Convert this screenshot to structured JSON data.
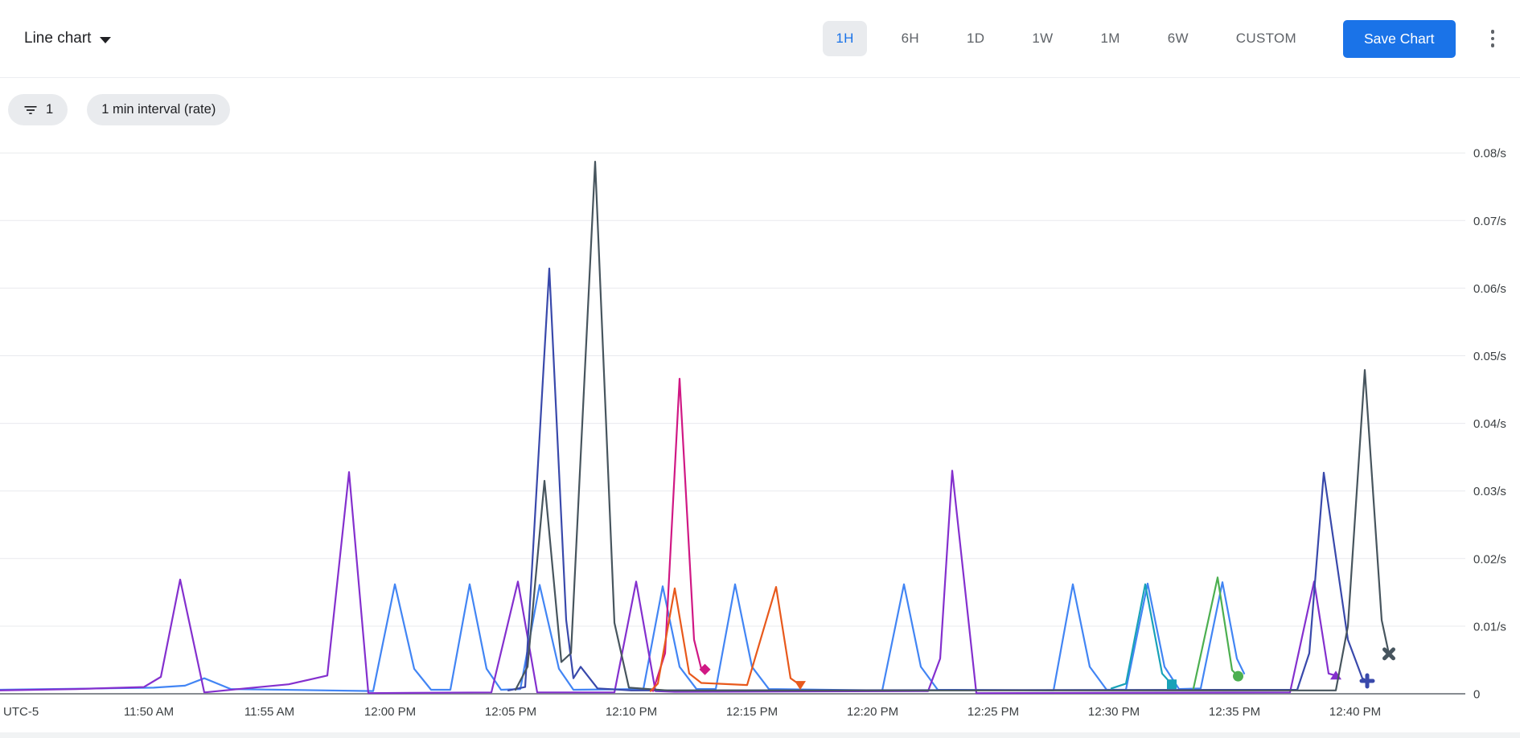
{
  "header": {
    "chart_type_label": "Line chart",
    "time_ranges": [
      "1H",
      "6H",
      "1D",
      "1W",
      "1M",
      "6W",
      "CUSTOM"
    ],
    "selected_range": "1H",
    "save_button": "Save Chart"
  },
  "filters": {
    "filter_count": "1",
    "interval_chip": "1 min interval (rate)"
  },
  "colors": {
    "accent_blue": "#1a73e8",
    "selected_pill_bg": "#e9ebee",
    "chip_bg": "#e9ebee",
    "gridline": "#e9eaee",
    "axis_line": "#878c91",
    "tick_text": "#3c4043"
  },
  "chart_data": {
    "type": "line",
    "title": "",
    "y_axis": {
      "unit": "/s",
      "ylim": [
        0,
        0.08
      ],
      "ticks": [
        {
          "v": 0.08,
          "label": "0.08/s"
        },
        {
          "v": 0.07,
          "label": "0.07/s"
        },
        {
          "v": 0.06,
          "label": "0.06/s"
        },
        {
          "v": 0.05,
          "label": "0.05/s"
        },
        {
          "v": 0.04,
          "label": "0.04/s"
        },
        {
          "v": 0.03,
          "label": "0.03/s"
        },
        {
          "v": 0.02,
          "label": "0.02/s"
        },
        {
          "v": 0.01,
          "label": "0.01/s"
        },
        {
          "v": 0,
          "label": "0"
        }
      ]
    },
    "x_axis": {
      "timezone_label": "UTC-5",
      "t_unit": "minutes after 11:45 AM",
      "ticks": [
        {
          "t": 5,
          "label": "11:50 AM"
        },
        {
          "t": 10,
          "label": "11:55 AM"
        },
        {
          "t": 15,
          "label": "12:00 PM"
        },
        {
          "t": 20,
          "label": "12:05 PM"
        },
        {
          "t": 25,
          "label": "12:10 PM"
        },
        {
          "t": 30,
          "label": "12:15 PM"
        },
        {
          "t": 35,
          "label": "12:20 PM"
        },
        {
          "t": 40,
          "label": "12:25 PM"
        },
        {
          "t": 45,
          "label": "12:30 PM"
        },
        {
          "t": 50,
          "label": "12:35 PM"
        },
        {
          "t": 55,
          "label": "12:40 PM"
        }
      ]
    },
    "series": [
      {
        "name": "blue",
        "color": "#4285f4",
        "marker": null,
        "points": [
          [
            -1.2,
            0.0006
          ],
          [
            3,
            0.0008
          ],
          [
            5.2,
            0.0009
          ],
          [
            6.5,
            0.0012
          ],
          [
            7.3,
            0.0023
          ],
          [
            8.4,
            0.0007
          ],
          [
            14.3,
            0.0004
          ],
          [
            15.2,
            0.0162
          ],
          [
            16,
            0.0037
          ],
          [
            16.7,
            0.0006
          ],
          [
            17.5,
            0.0006
          ],
          [
            18.3,
            0.0162
          ],
          [
            19,
            0.0037
          ],
          [
            19.6,
            0.0006
          ],
          [
            20.4,
            0.0007
          ],
          [
            21.2,
            0.0161
          ],
          [
            22,
            0.0037
          ],
          [
            22.6,
            0.0006
          ],
          [
            25.5,
            0.0007
          ],
          [
            26.3,
            0.0159
          ],
          [
            27,
            0.004
          ],
          [
            27.7,
            0.0007
          ],
          [
            28.5,
            0.0007
          ],
          [
            29.3,
            0.0162
          ],
          [
            30,
            0.004
          ],
          [
            30.7,
            0.0007
          ],
          [
            35.4,
            0.0005
          ],
          [
            36.3,
            0.0162
          ],
          [
            37,
            0.004
          ],
          [
            37.7,
            0.0006
          ],
          [
            42.5,
            0.0005
          ],
          [
            43.3,
            0.0162
          ],
          [
            44,
            0.004
          ],
          [
            44.7,
            0.0006
          ],
          [
            45.5,
            0.0006
          ],
          [
            46.4,
            0.0163
          ],
          [
            47.1,
            0.004
          ],
          [
            47.7,
            0.0007
          ],
          [
            48.6,
            0.0008
          ],
          [
            49.5,
            0.0165
          ],
          [
            50.1,
            0.0052
          ],
          [
            50.4,
            0.003
          ]
        ]
      },
      {
        "name": "purple",
        "color": "#8430ce",
        "marker": "triangle-up",
        "points": [
          [
            -1.2,
            0.0005
          ],
          [
            2,
            0.0007
          ],
          [
            4.8,
            0.001
          ],
          [
            5.5,
            0.0025
          ],
          [
            6.3,
            0.0169
          ],
          [
            7.3,
            0.0002
          ],
          [
            9,
            0.0008
          ],
          [
            10.8,
            0.0014
          ],
          [
            12.4,
            0.0027
          ],
          [
            13.3,
            0.0328
          ],
          [
            14.1,
            0.0001
          ],
          [
            19.2,
            0.0002
          ],
          [
            20.3,
            0.0166
          ],
          [
            21.1,
            0.0002
          ],
          [
            24.3,
            0.0002
          ],
          [
            25.2,
            0.0166
          ],
          [
            26,
            0.0004
          ],
          [
            26.8,
            0.0003
          ],
          [
            37.3,
            0.0004
          ],
          [
            37.8,
            0.0052
          ],
          [
            38.3,
            0.033
          ],
          [
            39.3,
            0.0001
          ],
          [
            52.3,
            0.0002
          ],
          [
            53.3,
            0.0166
          ],
          [
            53.9,
            0.003
          ],
          [
            54.2,
            0.0027
          ]
        ]
      },
      {
        "name": "indigo",
        "color": "#3949ab",
        "marker": "plus",
        "points": [
          [
            19.9,
            0.0005
          ],
          [
            20.6,
            0.001
          ],
          [
            21.6,
            0.0629
          ],
          [
            22.3,
            0.0109
          ],
          [
            22.6,
            0.0023
          ],
          [
            22.9,
            0.004
          ],
          [
            23.6,
            0.0008
          ],
          [
            25,
            0.0005
          ],
          [
            52.6,
            0.0006
          ],
          [
            53.1,
            0.006
          ],
          [
            53.7,
            0.0327
          ],
          [
            54.7,
            0.008
          ],
          [
            55.3,
            0.0023
          ],
          [
            55.5,
            0.0019
          ]
        ]
      },
      {
        "name": "slate",
        "color": "#47555e",
        "marker": "x",
        "points": [
          [
            20.2,
            0.0006
          ],
          [
            20.7,
            0.004
          ],
          [
            21.4,
            0.0315
          ],
          [
            22.1,
            0.0047
          ],
          [
            22.5,
            0.006
          ],
          [
            23.5,
            0.0787
          ],
          [
            24.3,
            0.0105
          ],
          [
            24.9,
            0.0009
          ],
          [
            26.5,
            0.0005
          ],
          [
            54.2,
            0.0005
          ],
          [
            54.7,
            0.01
          ],
          [
            55.4,
            0.0479
          ],
          [
            56.1,
            0.0109
          ],
          [
            56.4,
            0.0059
          ]
        ]
      },
      {
        "name": "magenta",
        "color": "#d01884",
        "marker": "diamond",
        "points": [
          [
            25.9,
            0.0004
          ],
          [
            26.4,
            0.006
          ],
          [
            27,
            0.0466
          ],
          [
            27.6,
            0.008
          ],
          [
            27.9,
            0.0037
          ],
          [
            28.05,
            0.0036
          ]
        ]
      },
      {
        "name": "orange",
        "color": "#e8591c",
        "marker": "triangle-down",
        "points": [
          [
            25.8,
            0.0004
          ],
          [
            26.1,
            0.0015
          ],
          [
            26.8,
            0.0156
          ],
          [
            27.4,
            0.003
          ],
          [
            27.9,
            0.0016
          ],
          [
            29.8,
            0.0013
          ],
          [
            31,
            0.0158
          ],
          [
            31.6,
            0.0023
          ],
          [
            32,
            0.0013
          ]
        ]
      },
      {
        "name": "teal",
        "color": "#18a2b8",
        "marker": "square",
        "points": [
          [
            44.9,
            0.0008
          ],
          [
            45.5,
            0.0015
          ],
          [
            46.3,
            0.0162
          ],
          [
            47,
            0.003
          ],
          [
            47.4,
            0.0014
          ]
        ]
      },
      {
        "name": "green",
        "color": "#4caf50",
        "marker": "circle",
        "points": [
          [
            48.3,
            0.0008
          ],
          [
            49.3,
            0.0172
          ],
          [
            49.9,
            0.0035
          ],
          [
            50.15,
            0.0026
          ]
        ]
      }
    ]
  }
}
